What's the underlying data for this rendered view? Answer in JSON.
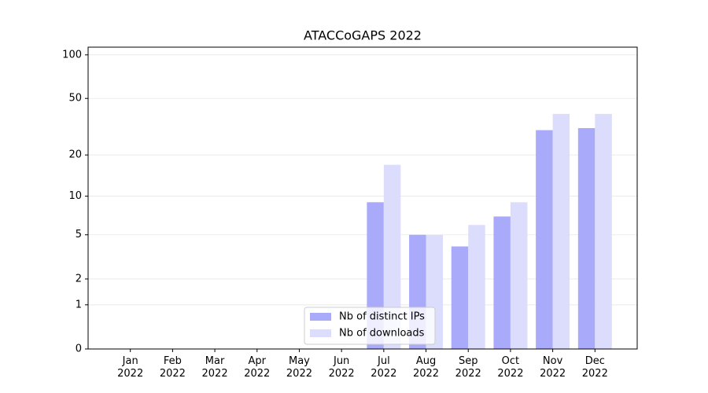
{
  "chart_data": {
    "type": "bar",
    "title": "ATACCoGAPS 2022",
    "categories": [
      "Jan\n2022",
      "Feb\n2022",
      "Mar\n2022",
      "Apr\n2022",
      "May\n2022",
      "Jun\n2022",
      "Jul\n2022",
      "Aug\n2022",
      "Sep\n2022",
      "Oct\n2022",
      "Nov\n2022",
      "Dec\n2022"
    ],
    "series": [
      {
        "name": "Nb of distinct IPs",
        "color": "#aaaafb",
        "values": [
          0,
          0,
          0,
          0,
          0,
          0,
          9,
          5,
          4,
          7,
          30,
          31
        ]
      },
      {
        "name": "Nb of downloads",
        "color": "#dcdcfd",
        "values": [
          0,
          0,
          0,
          0,
          0,
          0,
          17,
          5,
          6,
          9,
          39,
          39
        ]
      }
    ],
    "yscale": "log1p",
    "ylim": [
      0,
      113
    ],
    "yticks": [
      0,
      1,
      2,
      5,
      10,
      20,
      50,
      100
    ],
    "grid": true,
    "legend": "lower center"
  }
}
